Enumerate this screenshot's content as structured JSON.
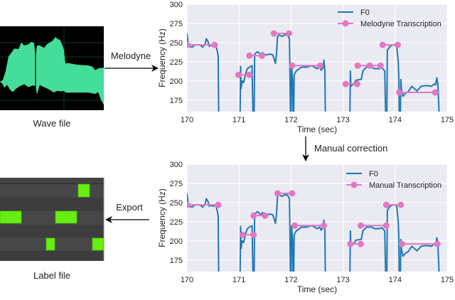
{
  "wave": {
    "caption": "Wave file",
    "color": "#44dd99"
  },
  "label_file": {
    "caption": "Label file",
    "note_color": "#66ee11"
  },
  "arrows": {
    "melodyne": "Melodyne",
    "manual": "Manual correction",
    "export": "Export"
  },
  "chart_data": [
    {
      "type": "line",
      "xlabel": "Time (sec)",
      "ylabel": "Frequency (Hz)",
      "xlim": [
        170,
        175
      ],
      "ylim": [
        160,
        300
      ],
      "xticks": [
        "170",
        "171",
        "172",
        "173",
        "174",
        "175"
      ],
      "yticks": [
        "175",
        "200",
        "225",
        "250",
        "275",
        "300"
      ],
      "grid": true,
      "legend_position": "top-right",
      "series": [
        {
          "name": "F0",
          "color": "#1f77b4",
          "kind": "f0"
        },
        {
          "name": "Melodyne Transcription",
          "color": "#e377c2",
          "kind": "notes",
          "notes": [
            [
              170.0,
              170.53,
              247
            ],
            [
              170.99,
              171.2,
              208
            ],
            [
              171.2,
              171.44,
              233
            ],
            [
              171.67,
              171.96,
              262
            ],
            [
              172.02,
              172.56,
              220
            ],
            [
              173.05,
              173.27,
              196
            ],
            [
              173.28,
              173.51,
              220
            ],
            [
              173.51,
              173.72,
              220
            ],
            [
              173.76,
              174.05,
              247
            ],
            [
              174.08,
              174.77,
              185
            ]
          ]
        }
      ]
    },
    {
      "type": "line",
      "xlabel": "Time (sec)",
      "ylabel": "Frequency (Hz)",
      "xlim": [
        170,
        175
      ],
      "ylim": [
        160,
        300
      ],
      "xticks": [
        "170",
        "171",
        "172",
        "173",
        "174",
        "175"
      ],
      "yticks": [
        "175",
        "200",
        "225",
        "250",
        "275",
        "300"
      ],
      "grid": true,
      "legend_position": "top-right",
      "series": [
        {
          "name": "F0",
          "color": "#1f77b4",
          "kind": "f0"
        },
        {
          "name": "Manual Transcription",
          "color": "#e377c2",
          "kind": "notes",
          "notes": [
            [
              170.0,
              170.6,
              247
            ],
            [
              171.07,
              171.28,
              208
            ],
            [
              171.28,
              171.5,
              233
            ],
            [
              171.74,
              172.02,
              262
            ],
            [
              172.07,
              172.63,
              220
            ],
            [
              173.14,
              173.34,
              196
            ],
            [
              173.34,
              173.83,
              220
            ],
            [
              173.83,
              174.11,
              247
            ],
            [
              174.13,
              174.81,
              196
            ]
          ]
        }
      ]
    }
  ],
  "f0_curve": [
    [
      [
        170.0,
        262
      ],
      [
        170.02,
        250
      ],
      [
        170.05,
        245
      ],
      [
        170.1,
        244
      ],
      [
        170.15,
        247
      ],
      [
        170.25,
        247
      ],
      [
        170.3,
        244
      ],
      [
        170.35,
        248
      ],
      [
        170.37,
        255
      ],
      [
        170.4,
        252
      ],
      [
        170.43,
        245
      ],
      [
        170.46,
        247
      ],
      [
        170.5,
        245
      ],
      [
        170.55,
        247
      ],
      [
        170.58,
        240
      ],
      [
        170.6,
        232
      ],
      [
        170.61,
        150
      ]
    ],
    [
      [
        171.02,
        150
      ],
      [
        171.03,
        219
      ],
      [
        171.04,
        190
      ],
      [
        171.06,
        200
      ],
      [
        171.09,
        198
      ],
      [
        171.13,
        210
      ],
      [
        171.16,
        216
      ],
      [
        171.25,
        220
      ],
      [
        171.27,
        150
      ]
    ],
    [
      [
        171.29,
        150
      ],
      [
        171.3,
        235
      ],
      [
        171.35,
        238
      ],
      [
        171.38,
        237
      ],
      [
        171.42,
        233
      ],
      [
        171.45,
        237
      ],
      [
        171.5,
        234
      ],
      [
        171.6,
        235
      ],
      [
        171.65,
        234
      ],
      [
        171.7,
        223
      ],
      [
        171.72,
        235
      ],
      [
        171.74,
        258
      ],
      [
        171.77,
        260
      ],
      [
        171.83,
        258
      ],
      [
        171.87,
        260
      ],
      [
        171.93,
        260
      ],
      [
        171.97,
        255
      ],
      [
        171.99,
        150
      ]
    ],
    [
      [
        172.0,
        150
      ],
      [
        172.01,
        220
      ],
      [
        172.03,
        200
      ],
      [
        172.04,
        150
      ]
    ],
    [
      [
        172.05,
        150
      ],
      [
        172.06,
        208
      ],
      [
        172.1,
        213
      ],
      [
        172.2,
        218
      ],
      [
        172.3,
        218
      ],
      [
        172.4,
        220
      ],
      [
        172.5,
        216
      ],
      [
        172.55,
        218
      ],
      [
        172.58,
        214
      ],
      [
        172.62,
        218
      ],
      [
        172.63,
        227
      ],
      [
        172.65,
        214
      ],
      [
        172.66,
        150
      ]
    ],
    [
      [
        173.13,
        150
      ],
      [
        173.14,
        213
      ],
      [
        173.15,
        193
      ],
      [
        173.2,
        196
      ],
      [
        173.25,
        201
      ],
      [
        173.35,
        202
      ],
      [
        173.38,
        213
      ],
      [
        173.45,
        218
      ],
      [
        173.55,
        218
      ],
      [
        173.6,
        216
      ],
      [
        173.7,
        216
      ],
      [
        173.75,
        217
      ],
      [
        173.8,
        213
      ],
      [
        173.82,
        150
      ]
    ],
    [
      [
        173.84,
        150
      ],
      [
        173.85,
        240
      ],
      [
        173.9,
        245
      ],
      [
        173.95,
        247
      ],
      [
        174.0,
        247
      ],
      [
        174.03,
        245
      ],
      [
        174.06,
        225
      ],
      [
        174.07,
        205
      ],
      [
        174.08,
        150
      ]
    ],
    [
      [
        174.1,
        150
      ],
      [
        174.11,
        202
      ],
      [
        174.12,
        190
      ],
      [
        174.15,
        180
      ],
      [
        174.2,
        184
      ],
      [
        174.25,
        186
      ],
      [
        174.32,
        193
      ],
      [
        174.37,
        190
      ],
      [
        174.42,
        187
      ],
      [
        174.5,
        193
      ],
      [
        174.6,
        194
      ],
      [
        174.7,
        193
      ],
      [
        174.75,
        196
      ],
      [
        174.78,
        195
      ],
      [
        174.8,
        204
      ],
      [
        174.82,
        197
      ],
      [
        174.85,
        150
      ]
    ]
  ]
}
